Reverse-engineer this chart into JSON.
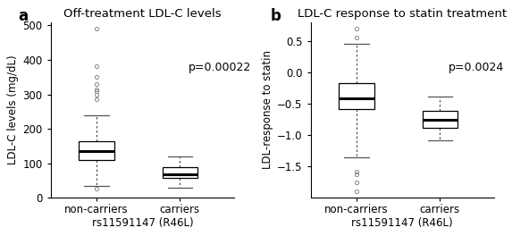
{
  "panel_a": {
    "title": "Off-treatment LDL-C levels",
    "ylabel": "LDL-C levels (mg/dL)",
    "xlabel": "rs11591147 (R46L)",
    "pvalue": "p=0.00022",
    "ylim": [
      0,
      510
    ],
    "yticks": [
      0,
      100,
      200,
      300,
      400,
      500
    ],
    "categories": [
      "non-carriers",
      "carriers"
    ],
    "non_carriers": {
      "q1": 110,
      "median": 135,
      "q3": 163,
      "whisker_low": 35,
      "whisker_high": 240,
      "fliers_high": [
        285,
        300,
        310,
        315,
        330,
        352,
        382,
        490
      ],
      "fliers_low": [
        28
      ]
    },
    "carriers": {
      "q1": 58,
      "median": 68,
      "q3": 90,
      "whisker_low": 30,
      "whisker_high": 120,
      "fliers_high": [],
      "fliers_low": []
    }
  },
  "panel_b": {
    "title": "LDL-C response to statin treatment",
    "ylabel": "LDL-response to statin",
    "xlabel": "rs11591147 (R46L)",
    "pvalue": "p=0.0024",
    "ylim": [
      -2.0,
      0.8
    ],
    "yticks": [
      -1.5,
      -1.0,
      -0.5,
      0.0,
      0.5
    ],
    "categories": [
      "non-carriers",
      "carriers"
    ],
    "non_carriers": {
      "q1": -0.58,
      "median": -0.42,
      "q3": -0.18,
      "whisker_low": -1.35,
      "whisker_high": 0.45,
      "fliers_high": [
        0.55,
        0.7
      ],
      "fliers_low": [
        -1.58,
        -1.62,
        -1.75,
        -1.9
      ]
    },
    "carriers": {
      "q1": -0.88,
      "median": -0.75,
      "q3": -0.62,
      "whisker_low": -1.08,
      "whisker_high": -0.38,
      "fliers_high": [],
      "fliers_low": []
    }
  },
  "box_facecolor": "#ffffff",
  "box_edgecolor": "#000000",
  "median_color": "#000000",
  "whisker_color": "#555555",
  "flier_color": "#888888",
  "label_fontsize": 8.5,
  "title_fontsize": 9.5,
  "pvalue_fontsize": 9,
  "tick_fontsize": 8.5,
  "panel_label_fontsize": 12
}
